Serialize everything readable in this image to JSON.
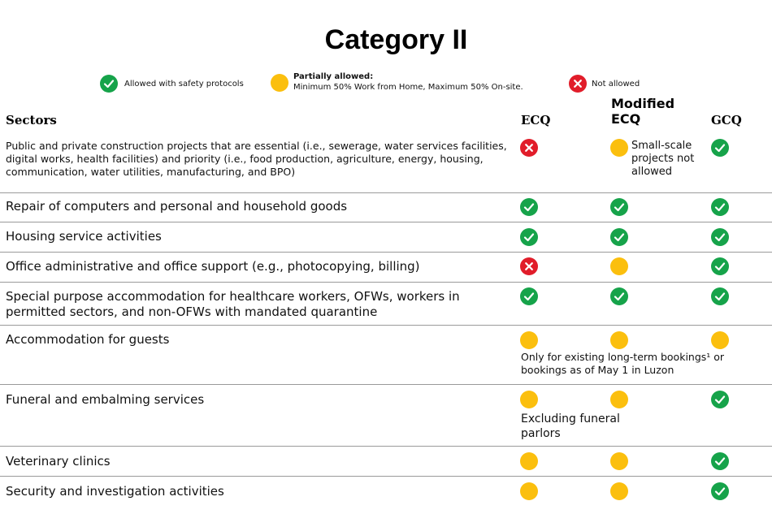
{
  "title": "Category II",
  "legend": {
    "allowed": "Allowed with safety protocols",
    "partial_title": "Partially allowed:",
    "partial_desc": "Minimum 50% Work from Home,  Maximum 50% On-site.",
    "not_allowed": "Not allowed"
  },
  "colors": {
    "allowed": "#16a34a",
    "partial": "#fbbf0e",
    "not_allowed": "#e11d2a"
  },
  "headers": {
    "sectors": "Sectors",
    "ecq": "ECQ",
    "mecq_line1": "Modified",
    "mecq_line2": "ECQ",
    "gcq": "GCQ"
  },
  "rows": [
    {
      "sector": "Public and private construction projects that are essential (i.e., sewerage, water services facilities, digital works, health facilities) and priority (i.e., food production, agriculture, energy, housing, communication, water utilities, manufacturing, and BPO)",
      "ecq": "not_allowed",
      "mecq": "partial",
      "gcq": "allowed",
      "mecq_note": "Small-scale projects not allowed"
    },
    {
      "sector": "Repair of computers and personal and household goods",
      "ecq": "allowed",
      "mecq": "allowed",
      "gcq": "allowed"
    },
    {
      "sector": "Housing service activities",
      "ecq": "allowed",
      "mecq": "allowed",
      "gcq": "allowed"
    },
    {
      "sector": "Office administrative and office support (e.g., photocopying, billing)",
      "ecq": "not_allowed",
      "mecq": "partial",
      "gcq": "allowed"
    },
    {
      "sector": "Special purpose accommodation for healthcare workers, OFWs, workers in permitted sectors, and non-OFWs with mandated quarantine",
      "ecq": "allowed",
      "mecq": "allowed",
      "gcq": "allowed"
    },
    {
      "sector": "Accommodation for guests",
      "ecq": "partial",
      "mecq": "partial",
      "gcq": "partial",
      "note": "Only for existing long-term bookings¹ or bookings as of May 1 in Luzon"
    },
    {
      "sector": "Funeral and embalming services",
      "ecq": "partial",
      "mecq": "partial",
      "gcq": "allowed",
      "note": "Excluding funeral parlors"
    },
    {
      "sector": "Veterinary clinics",
      "ecq": "partial",
      "mecq": "partial",
      "gcq": "allowed"
    },
    {
      "sector": "Security and investigation activities",
      "ecq": "partial",
      "mecq": "partial",
      "gcq": "allowed"
    }
  ]
}
